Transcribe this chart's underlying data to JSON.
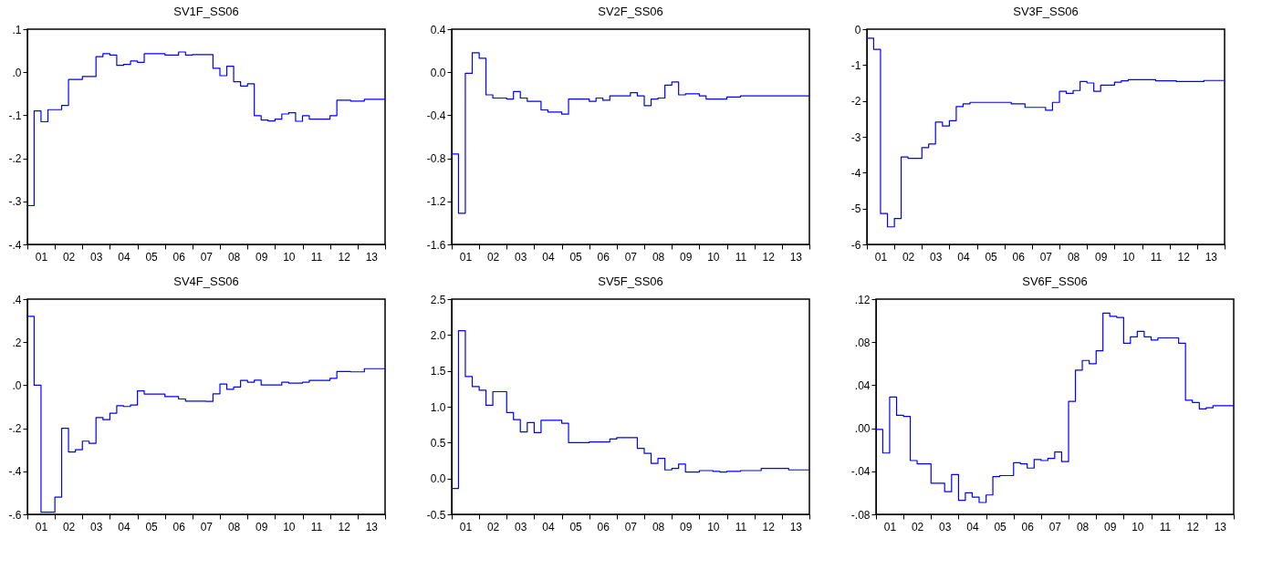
{
  "chart_data": [
    {
      "type": "step",
      "title": "SV1F_SS06",
      "xlim": [
        "2001-01",
        "2014-01"
      ],
      "ylim": [
        -0.4,
        0.1
      ],
      "xticks": [
        {
          "value": "2001-01",
          "label": null
        },
        {
          "value": "2002-01",
          "label": null
        },
        {
          "value": "2003-01",
          "label": null
        },
        {
          "value": "2004-01",
          "label": null
        },
        {
          "value": "2005-01",
          "label": null
        },
        {
          "value": "2006-01",
          "label": null
        },
        {
          "value": "2007-01",
          "label": null
        },
        {
          "value": "2008-01",
          "label": null
        },
        {
          "value": "2009-01",
          "label": null
        },
        {
          "value": "2010-01",
          "label": null
        },
        {
          "value": "2011-01",
          "label": null
        },
        {
          "value": "2012-01",
          "label": null
        },
        {
          "value": "2013-01",
          "label": null
        },
        {
          "value": "2014-01",
          "label": null
        },
        {
          "value": "2001-07",
          "label": "01"
        },
        {
          "value": "2002-07",
          "label": "02"
        },
        {
          "value": "2003-07",
          "label": "03"
        },
        {
          "value": "2004-07",
          "label": "04"
        },
        {
          "value": "2005-07",
          "label": "05"
        },
        {
          "value": "2006-07",
          "label": "06"
        },
        {
          "value": "2007-07",
          "label": "07"
        },
        {
          "value": "2008-07",
          "label": "08"
        },
        {
          "value": "2009-07",
          "label": "09"
        },
        {
          "value": "2010-07",
          "label": "10"
        },
        {
          "value": "2011-07",
          "label": "11"
        },
        {
          "value": "2012-07",
          "label": "12"
        },
        {
          "value": "2013-07",
          "label": "13"
        }
      ],
      "yticks": [
        {
          "value": 0.1,
          "label": ".1"
        },
        {
          "value": 0,
          "label": ".0"
        },
        {
          "value": -0.1,
          "label": "-.1"
        },
        {
          "value": -0.2,
          "label": "-.2"
        },
        {
          "value": -0.3,
          "label": "-.3"
        },
        {
          "value": -0.4,
          "label": "-.4"
        }
      ],
      "x": [
        "2001-01",
        "2001-04",
        "2001-07",
        "2001-10",
        "2002-04",
        "2002-07",
        "2003-01",
        "2003-07",
        "2003-10",
        "2004-01",
        "2004-04",
        "2004-07",
        "2004-10",
        "2005-01",
        "2005-04",
        "2006-01",
        "2006-07",
        "2006-10",
        "2007-01",
        "2007-10",
        "2008-01",
        "2008-04",
        "2008-07",
        "2008-10",
        "2009-01",
        "2009-04",
        "2009-07",
        "2009-10",
        "2010-01",
        "2010-04",
        "2010-07",
        "2010-10",
        "2011-01",
        "2011-04",
        "2012-01",
        "2012-04",
        "2012-10",
        "2013-04",
        "2014-01"
      ],
      "series": [
        {
          "color": "#0000ff",
          "values": [
            -0.31,
            -0.09,
            -0.115,
            -0.087,
            -0.077,
            -0.017,
            -0.01,
            0.036,
            0.043,
            0.04,
            0.016,
            0.018,
            0.026,
            0.023,
            0.043,
            0.04,
            0.047,
            0.04,
            0.041,
            0.009,
            -0.008,
            0.014,
            -0.022,
            -0.032,
            -0.027,
            -0.101,
            -0.111,
            -0.113,
            -0.109,
            -0.097,
            -0.094,
            -0.114,
            -0.101,
            -0.109,
            -0.101,
            -0.065,
            -0.067,
            -0.063,
            -0.063
          ]
        }
      ]
    },
    {
      "type": "step",
      "title": "SV2F_SS06",
      "xlim": [
        "2001-01",
        "2014-01"
      ],
      "ylim": [
        -1.6,
        0.4
      ],
      "xticks": [
        {
          "value": "2001-01",
          "label": null
        },
        {
          "value": "2002-01",
          "label": null
        },
        {
          "value": "2003-01",
          "label": null
        },
        {
          "value": "2004-01",
          "label": null
        },
        {
          "value": "2005-01",
          "label": null
        },
        {
          "value": "2006-01",
          "label": null
        },
        {
          "value": "2007-01",
          "label": null
        },
        {
          "value": "2008-01",
          "label": null
        },
        {
          "value": "2009-01",
          "label": null
        },
        {
          "value": "2010-01",
          "label": null
        },
        {
          "value": "2011-01",
          "label": null
        },
        {
          "value": "2012-01",
          "label": null
        },
        {
          "value": "2013-01",
          "label": null
        },
        {
          "value": "2014-01",
          "label": null
        },
        {
          "value": "2001-07",
          "label": "01"
        },
        {
          "value": "2002-07",
          "label": "02"
        },
        {
          "value": "2003-07",
          "label": "03"
        },
        {
          "value": "2004-07",
          "label": "04"
        },
        {
          "value": "2005-07",
          "label": "05"
        },
        {
          "value": "2006-07",
          "label": "06"
        },
        {
          "value": "2007-07",
          "label": "07"
        },
        {
          "value": "2008-07",
          "label": "08"
        },
        {
          "value": "2009-07",
          "label": "09"
        },
        {
          "value": "2010-07",
          "label": "10"
        },
        {
          "value": "2011-07",
          "label": "11"
        },
        {
          "value": "2012-07",
          "label": "12"
        },
        {
          "value": "2013-07",
          "label": "13"
        }
      ],
      "yticks": [
        {
          "value": 0.4,
          "label": "0.4"
        },
        {
          "value": 0,
          "label": "0.0"
        },
        {
          "value": -0.4,
          "label": "-0.4"
        },
        {
          "value": -0.8,
          "label": "-0.8"
        },
        {
          "value": -1.2,
          "label": "-1.2"
        },
        {
          "value": -1.6,
          "label": "-1.6"
        }
      ],
      "x": [
        "2001-01",
        "2001-04",
        "2001-07",
        "2001-10",
        "2002-01",
        "2002-04",
        "2002-07",
        "2003-01",
        "2003-04",
        "2003-07",
        "2003-10",
        "2004-04",
        "2004-07",
        "2005-01",
        "2005-04",
        "2006-01",
        "2006-04",
        "2006-07",
        "2006-10",
        "2007-07",
        "2007-10",
        "2008-01",
        "2008-04",
        "2008-07",
        "2008-10",
        "2009-01",
        "2009-04",
        "2009-07",
        "2010-01",
        "2010-04",
        "2011-01",
        "2011-07",
        "2014-01"
      ],
      "series": [
        {
          "color": "#0000ff",
          "values": [
            -0.76,
            -1.31,
            -0.01,
            0.18,
            0.13,
            -0.21,
            -0.24,
            -0.25,
            -0.18,
            -0.24,
            -0.27,
            -0.35,
            -0.37,
            -0.39,
            -0.25,
            -0.27,
            -0.24,
            -0.26,
            -0.22,
            -0.19,
            -0.22,
            -0.31,
            -0.25,
            -0.24,
            -0.12,
            -0.09,
            -0.21,
            -0.2,
            -0.22,
            -0.25,
            -0.23,
            -0.22,
            -0.22
          ]
        }
      ]
    },
    {
      "type": "step",
      "title": "SV3F_SS06",
      "xlim": [
        "2001-01",
        "2014-01"
      ],
      "ylim": [
        -6,
        0
      ],
      "xticks": [
        {
          "value": "2001-01",
          "label": null
        },
        {
          "value": "2002-01",
          "label": null
        },
        {
          "value": "2003-01",
          "label": null
        },
        {
          "value": "2004-01",
          "label": null
        },
        {
          "value": "2005-01",
          "label": null
        },
        {
          "value": "2006-01",
          "label": null
        },
        {
          "value": "2007-01",
          "label": null
        },
        {
          "value": "2008-01",
          "label": null
        },
        {
          "value": "2009-01",
          "label": null
        },
        {
          "value": "2010-01",
          "label": null
        },
        {
          "value": "2011-01",
          "label": null
        },
        {
          "value": "2012-01",
          "label": null
        },
        {
          "value": "2013-01",
          "label": null
        },
        {
          "value": "2014-01",
          "label": null
        },
        {
          "value": "2001-07",
          "label": "01"
        },
        {
          "value": "2002-07",
          "label": "02"
        },
        {
          "value": "2003-07",
          "label": "03"
        },
        {
          "value": "2004-07",
          "label": "04"
        },
        {
          "value": "2005-07",
          "label": "05"
        },
        {
          "value": "2006-07",
          "label": "06"
        },
        {
          "value": "2007-07",
          "label": "07"
        },
        {
          "value": "2008-07",
          "label": "08"
        },
        {
          "value": "2009-07",
          "label": "09"
        },
        {
          "value": "2010-07",
          "label": "10"
        },
        {
          "value": "2011-07",
          "label": "11"
        },
        {
          "value": "2012-07",
          "label": "12"
        },
        {
          "value": "2013-07",
          "label": "13"
        }
      ],
      "yticks": [
        0,
        -1,
        -2,
        -3,
        -4,
        -5,
        -6
      ],
      "x": [
        "2001-01",
        "2001-04",
        "2001-07",
        "2001-10",
        "2002-01",
        "2002-04",
        "2002-07",
        "2003-01",
        "2003-04",
        "2003-07",
        "2003-10",
        "2004-01",
        "2004-04",
        "2004-07",
        "2004-10",
        "2006-04",
        "2006-10",
        "2007-07",
        "2007-10",
        "2008-01",
        "2008-04",
        "2008-07",
        "2008-10",
        "2009-01",
        "2009-04",
        "2009-07",
        "2010-01",
        "2010-04",
        "2010-07",
        "2011-07",
        "2012-04",
        "2013-04",
        "2014-01"
      ],
      "series": [
        {
          "color": "#0000ff",
          "values": [
            -0.25,
            -0.56,
            -5.14,
            -5.51,
            -5.28,
            -3.56,
            -3.6,
            -3.3,
            -3.2,
            -2.59,
            -2.7,
            -2.55,
            -2.16,
            -2.08,
            -2.04,
            -2.08,
            -2.18,
            -2.26,
            -2.04,
            -1.73,
            -1.79,
            -1.71,
            -1.46,
            -1.5,
            -1.73,
            -1.56,
            -1.48,
            -1.44,
            -1.41,
            -1.44,
            -1.46,
            -1.43,
            -1.43
          ]
        }
      ]
    },
    {
      "type": "step",
      "title": "SV4F_SS06",
      "xlim": [
        "2001-01",
        "2014-01"
      ],
      "ylim": [
        -0.6,
        0.4
      ],
      "xticks": [
        {
          "value": "2001-01",
          "label": null
        },
        {
          "value": "2002-01",
          "label": null
        },
        {
          "value": "2003-01",
          "label": null
        },
        {
          "value": "2004-01",
          "label": null
        },
        {
          "value": "2005-01",
          "label": null
        },
        {
          "value": "2006-01",
          "label": null
        },
        {
          "value": "2007-01",
          "label": null
        },
        {
          "value": "2008-01",
          "label": null
        },
        {
          "value": "2009-01",
          "label": null
        },
        {
          "value": "2010-01",
          "label": null
        },
        {
          "value": "2011-01",
          "label": null
        },
        {
          "value": "2012-01",
          "label": null
        },
        {
          "value": "2013-01",
          "label": null
        },
        {
          "value": "2014-01",
          "label": null
        },
        {
          "value": "2001-07",
          "label": "01"
        },
        {
          "value": "2002-07",
          "label": "02"
        },
        {
          "value": "2003-07",
          "label": "03"
        },
        {
          "value": "2004-07",
          "label": "04"
        },
        {
          "value": "2005-07",
          "label": "05"
        },
        {
          "value": "2006-07",
          "label": "06"
        },
        {
          "value": "2007-07",
          "label": "07"
        },
        {
          "value": "2008-07",
          "label": "08"
        },
        {
          "value": "2009-07",
          "label": "09"
        },
        {
          "value": "2010-07",
          "label": "10"
        },
        {
          "value": "2011-07",
          "label": "11"
        },
        {
          "value": "2012-07",
          "label": "12"
        },
        {
          "value": "2013-07",
          "label": "13"
        }
      ],
      "yticks": [
        {
          "value": 0.4,
          "label": ".4"
        },
        {
          "value": 0.2,
          "label": ".2"
        },
        {
          "value": 0,
          "label": ".0"
        },
        {
          "value": -0.2,
          "label": "-.2"
        },
        {
          "value": -0.4,
          "label": "-.4"
        },
        {
          "value": -0.6,
          "label": "-.6"
        }
      ],
      "x": [
        "2001-01",
        "2001-04",
        "2001-07",
        "2002-01",
        "2002-04",
        "2002-07",
        "2002-10",
        "2003-01",
        "2003-04",
        "2003-07",
        "2003-10",
        "2004-01",
        "2004-04",
        "2004-07",
        "2004-10",
        "2005-01",
        "2005-04",
        "2006-01",
        "2006-07",
        "2006-10",
        "2007-07",
        "2007-10",
        "2008-01",
        "2008-04",
        "2008-07",
        "2008-10",
        "2009-01",
        "2009-04",
        "2009-07",
        "2010-04",
        "2010-07",
        "2011-01",
        "2011-04",
        "2012-01",
        "2012-04",
        "2012-10",
        "2013-04",
        "2014-01"
      ],
      "series": [
        {
          "color": "#0000ff",
          "values": [
            0.32,
            0.0,
            -0.59,
            -0.52,
            -0.2,
            -0.31,
            -0.3,
            -0.26,
            -0.27,
            -0.15,
            -0.16,
            -0.13,
            -0.095,
            -0.099,
            -0.092,
            -0.026,
            -0.041,
            -0.053,
            -0.064,
            -0.074,
            -0.075,
            -0.04,
            0.005,
            -0.019,
            -0.008,
            0.022,
            0.014,
            0.023,
            0.001,
            0.014,
            0.01,
            0.014,
            0.022,
            0.032,
            0.064,
            0.062,
            0.077,
            0.077
          ]
        }
      ]
    },
    {
      "type": "step",
      "title": "SV5F_SS06",
      "xlim": [
        "2001-01",
        "2014-01"
      ],
      "ylim": [
        -0.5,
        2.5
      ],
      "xticks": [
        {
          "value": "2001-01",
          "label": null
        },
        {
          "value": "2002-01",
          "label": null
        },
        {
          "value": "2003-01",
          "label": null
        },
        {
          "value": "2004-01",
          "label": null
        },
        {
          "value": "2005-01",
          "label": null
        },
        {
          "value": "2006-01",
          "label": null
        },
        {
          "value": "2007-01",
          "label": null
        },
        {
          "value": "2008-01",
          "label": null
        },
        {
          "value": "2009-01",
          "label": null
        },
        {
          "value": "2010-01",
          "label": null
        },
        {
          "value": "2011-01",
          "label": null
        },
        {
          "value": "2012-01",
          "label": null
        },
        {
          "value": "2013-01",
          "label": null
        },
        {
          "value": "2014-01",
          "label": null
        },
        {
          "value": "2001-07",
          "label": "01"
        },
        {
          "value": "2002-07",
          "label": "02"
        },
        {
          "value": "2003-07",
          "label": "03"
        },
        {
          "value": "2004-07",
          "label": "04"
        },
        {
          "value": "2005-07",
          "label": "05"
        },
        {
          "value": "2006-07",
          "label": "06"
        },
        {
          "value": "2007-07",
          "label": "07"
        },
        {
          "value": "2008-07",
          "label": "08"
        },
        {
          "value": "2009-07",
          "label": "09"
        },
        {
          "value": "2010-07",
          "label": "10"
        },
        {
          "value": "2011-07",
          "label": "11"
        },
        {
          "value": "2012-07",
          "label": "12"
        },
        {
          "value": "2013-07",
          "label": "13"
        }
      ],
      "yticks": [
        {
          "value": 2.5,
          "label": "2.5"
        },
        {
          "value": 2,
          "label": "2.0"
        },
        {
          "value": 1.5,
          "label": "1.5"
        },
        {
          "value": 1,
          "label": "1.0"
        },
        {
          "value": 0.5,
          "label": "0.5"
        },
        {
          "value": 0,
          "label": "0.0"
        },
        {
          "value": -0.5,
          "label": "-0.5"
        }
      ],
      "x": [
        "2001-01",
        "2001-04",
        "2001-07",
        "2001-10",
        "2002-01",
        "2002-04",
        "2002-07",
        "2003-01",
        "2003-04",
        "2003-07",
        "2003-10",
        "2004-01",
        "2004-04",
        "2005-01",
        "2005-04",
        "2006-01",
        "2006-10",
        "2007-01",
        "2007-10",
        "2008-01",
        "2008-04",
        "2008-07",
        "2008-10",
        "2009-01",
        "2009-04",
        "2009-07",
        "2010-01",
        "2010-07",
        "2010-10",
        "2011-01",
        "2011-07",
        "2012-04",
        "2013-04",
        "2014-01"
      ],
      "series": [
        {
          "color": "#0000ff",
          "values": [
            -0.14,
            2.06,
            1.42,
            1.28,
            1.23,
            1.02,
            1.21,
            0.92,
            0.82,
            0.65,
            0.78,
            0.64,
            0.81,
            0.77,
            0.5,
            0.51,
            0.55,
            0.57,
            0.42,
            0.35,
            0.21,
            0.28,
            0.12,
            0.14,
            0.2,
            0.09,
            0.11,
            0.1,
            0.09,
            0.1,
            0.11,
            0.14,
            0.12,
            0.12
          ]
        }
      ]
    },
    {
      "type": "step",
      "title": "SV6F_SS06",
      "xlim": [
        "2001-01",
        "2014-01"
      ],
      "ylim": [
        -0.08,
        0.12
      ],
      "xticks": [
        {
          "value": "2001-01",
          "label": null
        },
        {
          "value": "2002-01",
          "label": null
        },
        {
          "value": "2003-01",
          "label": null
        },
        {
          "value": "2004-01",
          "label": null
        },
        {
          "value": "2005-01",
          "label": null
        },
        {
          "value": "2006-01",
          "label": null
        },
        {
          "value": "2007-01",
          "label": null
        },
        {
          "value": "2008-01",
          "label": null
        },
        {
          "value": "2009-01",
          "label": null
        },
        {
          "value": "2010-01",
          "label": null
        },
        {
          "value": "2011-01",
          "label": null
        },
        {
          "value": "2012-01",
          "label": null
        },
        {
          "value": "2013-01",
          "label": null
        },
        {
          "value": "2014-01",
          "label": null
        },
        {
          "value": "2001-07",
          "label": "01"
        },
        {
          "value": "2002-07",
          "label": "02"
        },
        {
          "value": "2003-07",
          "label": "03"
        },
        {
          "value": "2004-07",
          "label": "04"
        },
        {
          "value": "2005-07",
          "label": "05"
        },
        {
          "value": "2006-07",
          "label": "06"
        },
        {
          "value": "2007-07",
          "label": "07"
        },
        {
          "value": "2008-07",
          "label": "08"
        },
        {
          "value": "2009-07",
          "label": "09"
        },
        {
          "value": "2010-07",
          "label": "10"
        },
        {
          "value": "2011-07",
          "label": "11"
        },
        {
          "value": "2012-07",
          "label": "12"
        },
        {
          "value": "2013-07",
          "label": "13"
        }
      ],
      "yticks": [
        {
          "value": 0.12,
          "label": ".12"
        },
        {
          "value": 0.08,
          "label": ".08"
        },
        {
          "value": 0.04,
          "label": ".04"
        },
        {
          "value": 0,
          "label": ".00"
        },
        {
          "value": -0.04,
          "label": "-.04"
        },
        {
          "value": -0.08,
          "label": "-.08"
        }
      ],
      "x": [
        "2001-01",
        "2001-04",
        "2001-07",
        "2001-10",
        "2002-01",
        "2002-04",
        "2002-07",
        "2003-01",
        "2003-07",
        "2003-10",
        "2004-01",
        "2004-04",
        "2004-07",
        "2004-10",
        "2005-01",
        "2005-04",
        "2005-07",
        "2006-01",
        "2006-04",
        "2006-07",
        "2006-10",
        "2007-01",
        "2007-04",
        "2007-07",
        "2007-10",
        "2008-01",
        "2008-04",
        "2008-07",
        "2008-10",
        "2009-01",
        "2009-04",
        "2009-07",
        "2009-10",
        "2010-01",
        "2010-04",
        "2010-07",
        "2010-10",
        "2011-01",
        "2011-04",
        "2011-07",
        "2012-01",
        "2012-04",
        "2012-07",
        "2012-10",
        "2013-01",
        "2013-04",
        "2014-01"
      ],
      "series": [
        {
          "color": "#0000ff",
          "values": [
            -0.001,
            -0.023,
            0.029,
            0.012,
            0.011,
            -0.03,
            -0.033,
            -0.051,
            -0.059,
            -0.043,
            -0.067,
            -0.06,
            -0.064,
            -0.069,
            -0.062,
            -0.045,
            -0.044,
            -0.032,
            -0.033,
            -0.037,
            -0.029,
            -0.03,
            -0.028,
            -0.022,
            -0.031,
            0.025,
            0.054,
            0.063,
            0.06,
            0.072,
            0.107,
            0.104,
            0.103,
            0.079,
            0.085,
            0.09,
            0.085,
            0.082,
            0.084,
            0.084,
            0.079,
            0.026,
            0.024,
            0.018,
            0.019,
            0.021,
            0.021
          ]
        }
      ]
    }
  ]
}
